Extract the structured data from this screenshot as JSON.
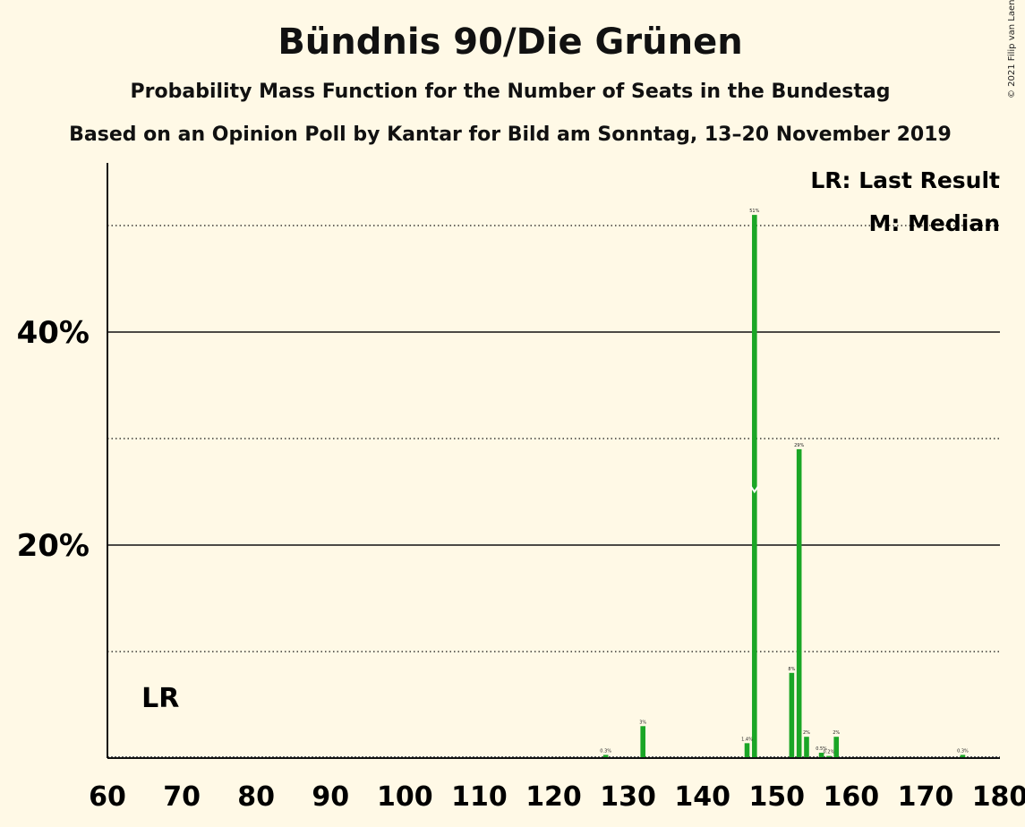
{
  "chart_data": {
    "type": "bar",
    "title": "Bündnis 90/Die Grünen",
    "subtitle": "Probability Mass Function for the Number of Seats in the Bundestag",
    "subtitle2": "Based on an Opinion Poll by Kantar for Bild am Sonntag, 13–20 November 2019",
    "copyright": "© 2021 Filip van Laenen",
    "legend": {
      "position": "top-right",
      "last_result": "LR: Last Result",
      "median": "M: Median"
    },
    "xlim": [
      60,
      180
    ],
    "ylim": [
      0,
      56
    ],
    "x_ticks": [
      60,
      70,
      80,
      90,
      100,
      110,
      120,
      130,
      140,
      150,
      160,
      170,
      180
    ],
    "y_ticks_labeled": [
      {
        "value": 20,
        "label": "20%"
      },
      {
        "value": 40,
        "label": "40%"
      }
    ],
    "y_gridlines_dotted": [
      10,
      30,
      50
    ],
    "last_result": {
      "seats": 67,
      "label": "LR"
    },
    "median": {
      "seats": 147,
      "marker": "M"
    },
    "color": "#1AA626",
    "x": [
      127,
      132,
      146,
      147,
      152,
      153,
      154,
      156,
      157,
      158,
      175
    ],
    "values": [
      0.3,
      3,
      1.4,
      51,
      8,
      29,
      2,
      0.5,
      0.2,
      2,
      0.3
    ],
    "data_labels": [
      "0.3%",
      "3%",
      "1.4%",
      "51%",
      "8%",
      "29%",
      "2%",
      "0.5%",
      "0.2%",
      "2%",
      "0.3%"
    ]
  }
}
